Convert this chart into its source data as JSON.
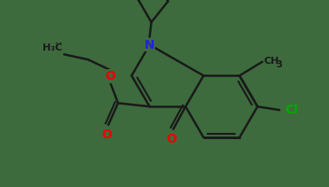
{
  "bg_color": "#3d6b3d",
  "bond_color": "#1a1a1a",
  "bond_width": 1.8,
  "atom_colors": {
    "O": "#ee0000",
    "N": "#2222dd",
    "Cl": "#00aa00",
    "C": "#1a1a1a"
  },
  "font_size_atom": 10,
  "font_size_sub": 7
}
